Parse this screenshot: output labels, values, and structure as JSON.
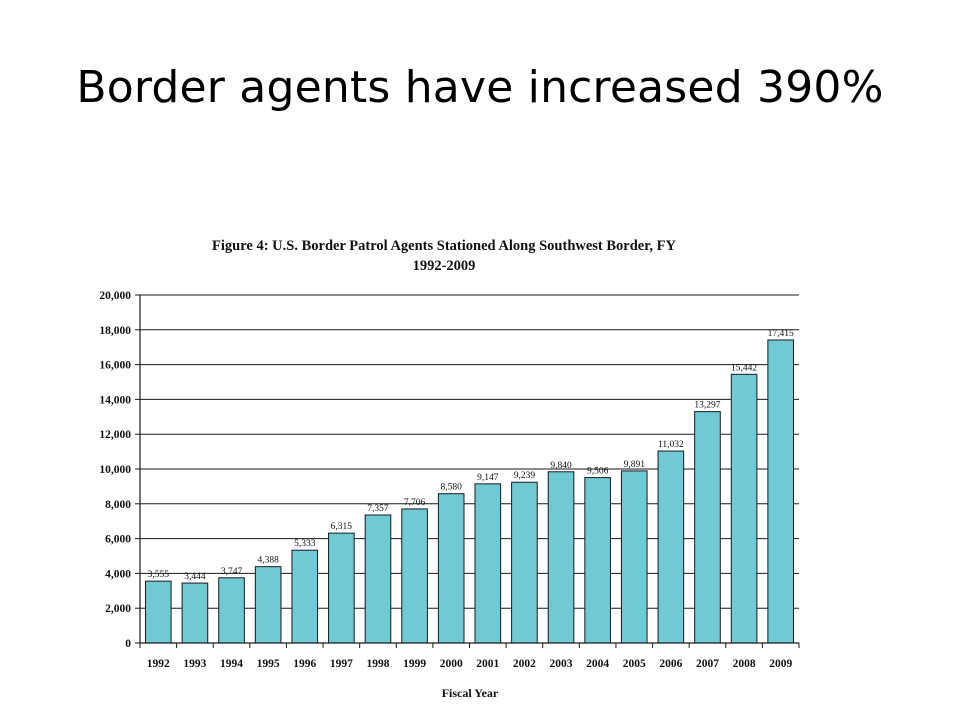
{
  "slide": {
    "title": "Border agents have increased 390%"
  },
  "chart_data": {
    "type": "bar",
    "title_line1": "Figure 4: U.S. Border Patrol Agents Stationed Along Southwest Border, FY",
    "title_line2": "1992-2009",
    "xlabel": "Fiscal Year",
    "ylabel": "",
    "ylim": [
      0,
      20000
    ],
    "ytick_step": 2000,
    "ytick_labels": [
      "0",
      "2,000",
      "4,000",
      "6,000",
      "8,000",
      "10,000",
      "12,000",
      "14,000",
      "16,000",
      "18,000",
      "20,000"
    ],
    "categories": [
      "1992",
      "1993",
      "1994",
      "1995",
      "1996",
      "1997",
      "1998",
      "1999",
      "2000",
      "2001",
      "2002",
      "2003",
      "2004",
      "2005",
      "2006",
      "2007",
      "2008",
      "2009"
    ],
    "values": [
      3555,
      3444,
      3747,
      4388,
      5333,
      6315,
      7357,
      7706,
      8580,
      9147,
      9239,
      9840,
      9506,
      9891,
      11032,
      13297,
      15442,
      17415
    ],
    "value_labels": [
      "3,555",
      "3,444",
      "3,747",
      "4,388",
      "5,333",
      "6,315",
      "7,357",
      "7,706",
      "8,580",
      "9,147",
      "9,239",
      "9,840",
      "9,506",
      "9,891",
      "11,032",
      "13,297",
      "15,442",
      "17,415"
    ],
    "grid": true,
    "legend": "none",
    "bar_color": "#6fcad6",
    "bar_edge_color": "#1a1a1a"
  }
}
